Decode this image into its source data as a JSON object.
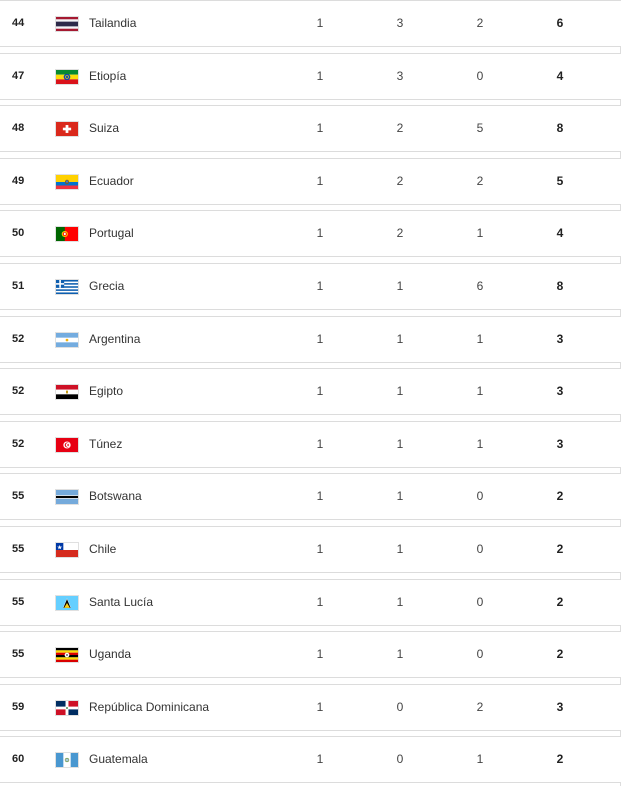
{
  "rows": [
    {
      "rank": "44",
      "country": "Tailandia",
      "flag_icon": "thailand-flag-icon",
      "gold": "1",
      "silver": "3",
      "bronze": "2",
      "total": "6"
    },
    {
      "rank": "47",
      "country": "Etiopía",
      "flag_icon": "ethiopia-flag-icon",
      "gold": "1",
      "silver": "3",
      "bronze": "0",
      "total": "4"
    },
    {
      "rank": "48",
      "country": "Suiza",
      "flag_icon": "switzerland-flag-icon",
      "gold": "1",
      "silver": "2",
      "bronze": "5",
      "total": "8"
    },
    {
      "rank": "49",
      "country": "Ecuador",
      "flag_icon": "ecuador-flag-icon",
      "gold": "1",
      "silver": "2",
      "bronze": "2",
      "total": "5"
    },
    {
      "rank": "50",
      "country": "Portugal",
      "flag_icon": "portugal-flag-icon",
      "gold": "1",
      "silver": "2",
      "bronze": "1",
      "total": "4"
    },
    {
      "rank": "51",
      "country": "Grecia",
      "flag_icon": "greece-flag-icon",
      "gold": "1",
      "silver": "1",
      "bronze": "6",
      "total": "8"
    },
    {
      "rank": "52",
      "country": "Argentina",
      "flag_icon": "argentina-flag-icon",
      "gold": "1",
      "silver": "1",
      "bronze": "1",
      "total": "3"
    },
    {
      "rank": "52",
      "country": "Egipto",
      "flag_icon": "egypt-flag-icon",
      "gold": "1",
      "silver": "1",
      "bronze": "1",
      "total": "3"
    },
    {
      "rank": "52",
      "country": "Túnez",
      "flag_icon": "tunisia-flag-icon",
      "gold": "1",
      "silver": "1",
      "bronze": "1",
      "total": "3"
    },
    {
      "rank": "55",
      "country": "Botswana",
      "flag_icon": "botswana-flag-icon",
      "gold": "1",
      "silver": "1",
      "bronze": "0",
      "total": "2"
    },
    {
      "rank": "55",
      "country": "Chile",
      "flag_icon": "chile-flag-icon",
      "gold": "1",
      "silver": "1",
      "bronze": "0",
      "total": "2"
    },
    {
      "rank": "55",
      "country": "Santa Lucía",
      "flag_icon": "saint-lucia-flag-icon",
      "gold": "1",
      "silver": "1",
      "bronze": "0",
      "total": "2"
    },
    {
      "rank": "55",
      "country": "Uganda",
      "flag_icon": "uganda-flag-icon",
      "gold": "1",
      "silver": "1",
      "bronze": "0",
      "total": "2"
    },
    {
      "rank": "59",
      "country": "República Dominicana",
      "flag_icon": "dominican-republic-flag-icon",
      "gold": "1",
      "silver": "0",
      "bronze": "2",
      "total": "3"
    },
    {
      "rank": "60",
      "country": "Guatemala",
      "flag_icon": "guatemala-flag-icon",
      "gold": "1",
      "silver": "0",
      "bronze": "1",
      "total": "2"
    }
  ]
}
